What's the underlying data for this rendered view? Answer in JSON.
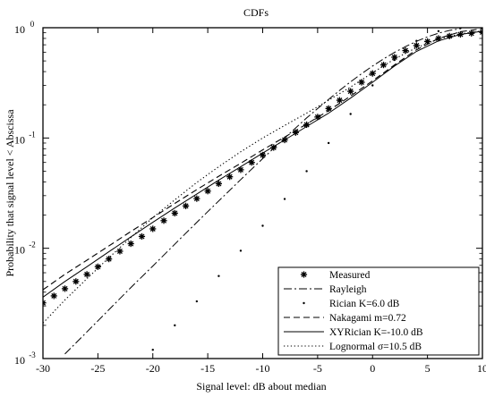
{
  "chart_data": {
    "type": "line",
    "title": "CDFs",
    "xlabel": "Signal level: dB about median",
    "ylabel": "Probability that signal level < Abscissa",
    "xlim": [
      -30,
      10
    ],
    "ylim": [
      0.001,
      1
    ],
    "yscale": "log",
    "grid": false,
    "legend_position": "bottom-right",
    "x_ticks": [
      -30,
      -25,
      -20,
      -15,
      -10,
      -5,
      0,
      5,
      10
    ],
    "x_tick_labels": [
      "-30",
      "-25",
      "-20",
      "-15",
      "-10",
      "-5",
      "0",
      "5",
      "10"
    ],
    "y_ticks": [
      0.001,
      0.01,
      0.1,
      1
    ],
    "y_tick_labels": [
      {
        "base": "10",
        "exp": "-3"
      },
      {
        "base": "10",
        "exp": "-2"
      },
      {
        "base": "10",
        "exp": "-1"
      },
      {
        "base": "10",
        "exp": "0"
      }
    ],
    "series": [
      {
        "name": "Measured",
        "style": "asterisk",
        "x": [
          -30,
          -29,
          -28,
          -27,
          -26,
          -25,
          -24,
          -23,
          -22,
          -21,
          -20,
          -19,
          -18,
          -17,
          -16,
          -15,
          -14,
          -13,
          -12,
          -11,
          -10,
          -9,
          -8,
          -7,
          -6,
          -5,
          -4,
          -3,
          -2,
          -1,
          0,
          1,
          2,
          3,
          4,
          5,
          6,
          7,
          8,
          9,
          10
        ],
        "y": [
          0.0032,
          0.0037,
          0.0043,
          0.005,
          0.0058,
          0.0068,
          0.008,
          0.0094,
          0.011,
          0.0128,
          0.015,
          0.0178,
          0.0208,
          0.0242,
          0.0282,
          0.033,
          0.0385,
          0.0445,
          0.0515,
          0.06,
          0.07,
          0.082,
          0.096,
          0.112,
          0.132,
          0.155,
          0.185,
          0.22,
          0.265,
          0.32,
          0.385,
          0.46,
          0.54,
          0.62,
          0.69,
          0.75,
          0.8,
          0.84,
          0.87,
          0.89,
          0.91
        ]
      },
      {
        "name": "Rayleigh",
        "style": "dashdot",
        "x": [
          -28,
          -25,
          -22,
          -20,
          -17,
          -15,
          -12,
          -10,
          -8,
          -6,
          -5,
          -4,
          -3,
          -2,
          -1,
          0,
          1,
          2,
          3,
          4,
          5,
          6,
          7,
          8
        ],
        "y": [
          0.0011,
          0.0022,
          0.0044,
          0.0069,
          0.0137,
          0.0215,
          0.042,
          0.065,
          0.1,
          0.152,
          0.185,
          0.224,
          0.27,
          0.323,
          0.383,
          0.45,
          0.521,
          0.597,
          0.675,
          0.753,
          0.827,
          0.893,
          0.946,
          0.98
        ]
      },
      {
        "name": "Rician K=6.0 dB",
        "style": "dots",
        "x": [
          -20,
          -18,
          -16,
          -14,
          -12,
          -10,
          -8,
          -6,
          -4,
          -2,
          0,
          2,
          4,
          6,
          8
        ],
        "y": [
          0.0012,
          0.002,
          0.0033,
          0.0056,
          0.0095,
          0.016,
          0.028,
          0.05,
          0.09,
          0.165,
          0.3,
          0.51,
          0.76,
          0.93,
          0.99
        ]
      },
      {
        "name": "Nakagami m=0.72",
        "style": "dashed",
        "x": [
          -30,
          -28,
          -26,
          -24,
          -22,
          -20,
          -18,
          -16,
          -14,
          -12,
          -10,
          -8,
          -6,
          -4,
          -2,
          0,
          2,
          4,
          6,
          8,
          10
        ],
        "y": [
          0.0042,
          0.0058,
          0.0078,
          0.0105,
          0.0142,
          0.019,
          0.0255,
          0.034,
          0.045,
          0.059,
          0.078,
          0.102,
          0.134,
          0.177,
          0.24,
          0.33,
          0.46,
          0.63,
          0.8,
          0.92,
          0.98
        ]
      },
      {
        "name": "XYRician K=-10.0 dB",
        "style": "solid",
        "x": [
          -30,
          -28,
          -26,
          -24,
          -22,
          -20,
          -18,
          -16,
          -14,
          -12,
          -10,
          -8,
          -6,
          -4,
          -2,
          0,
          2,
          4,
          6,
          8,
          10
        ],
        "y": [
          0.0036,
          0.005,
          0.0068,
          0.0093,
          0.0127,
          0.0172,
          0.0232,
          0.031,
          0.0415,
          0.055,
          0.073,
          0.096,
          0.127,
          0.168,
          0.23,
          0.32,
          0.45,
          0.61,
          0.76,
          0.87,
          0.93
        ]
      },
      {
        "name": "Lognormal σ=10.5 dB",
        "style": "dotted",
        "x": [
          -30,
          -28,
          -26,
          -24,
          -22,
          -20,
          -18,
          -16,
          -14,
          -12,
          -10,
          -8,
          -6,
          -4,
          -2,
          0,
          2,
          4,
          6,
          8,
          10
        ],
        "y": [
          0.0021,
          0.0034,
          0.0053,
          0.0082,
          0.0125,
          0.019,
          0.0275,
          0.0395,
          0.055,
          0.075,
          0.1,
          0.13,
          0.168,
          0.22,
          0.29,
          0.39,
          0.52,
          0.66,
          0.79,
          0.88,
          0.935
        ]
      }
    ],
    "colors": {
      "background": "#ffffff",
      "axes": "#000000",
      "lines": "#000000"
    }
  }
}
